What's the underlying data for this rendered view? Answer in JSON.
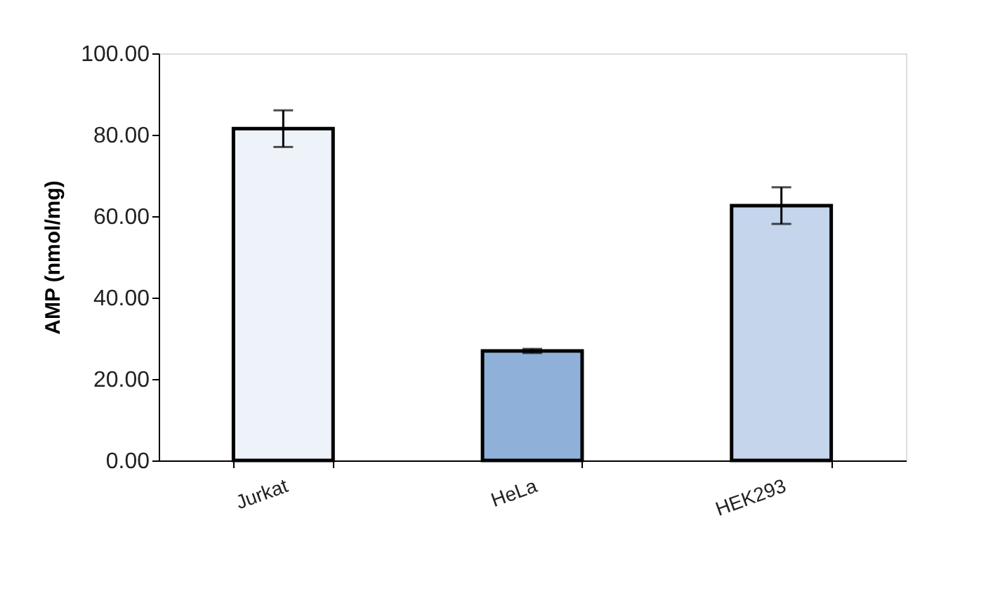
{
  "chart_data": {
    "type": "bar",
    "ylabel": "AMP (nmol/mg)",
    "categories": [
      "Jurkat",
      "HeLa",
      "HEK293"
    ],
    "values": [
      81.5,
      26.9,
      62.6
    ],
    "errors": [
      4.5,
      0.5,
      4.5
    ],
    "colors": [
      "#eef3fa",
      "#8fb0d9",
      "#c4d5ec"
    ],
    "ylim": [
      0,
      100
    ],
    "yticks": [
      {
        "value": 0,
        "label": "0.00"
      },
      {
        "value": 20,
        "label": "20.00"
      },
      {
        "value": 40,
        "label": "40.00"
      },
      {
        "value": 60,
        "label": "60.00"
      },
      {
        "value": 80,
        "label": "80.00"
      },
      {
        "value": 100,
        "label": "100.00"
      }
    ],
    "grid": false
  }
}
